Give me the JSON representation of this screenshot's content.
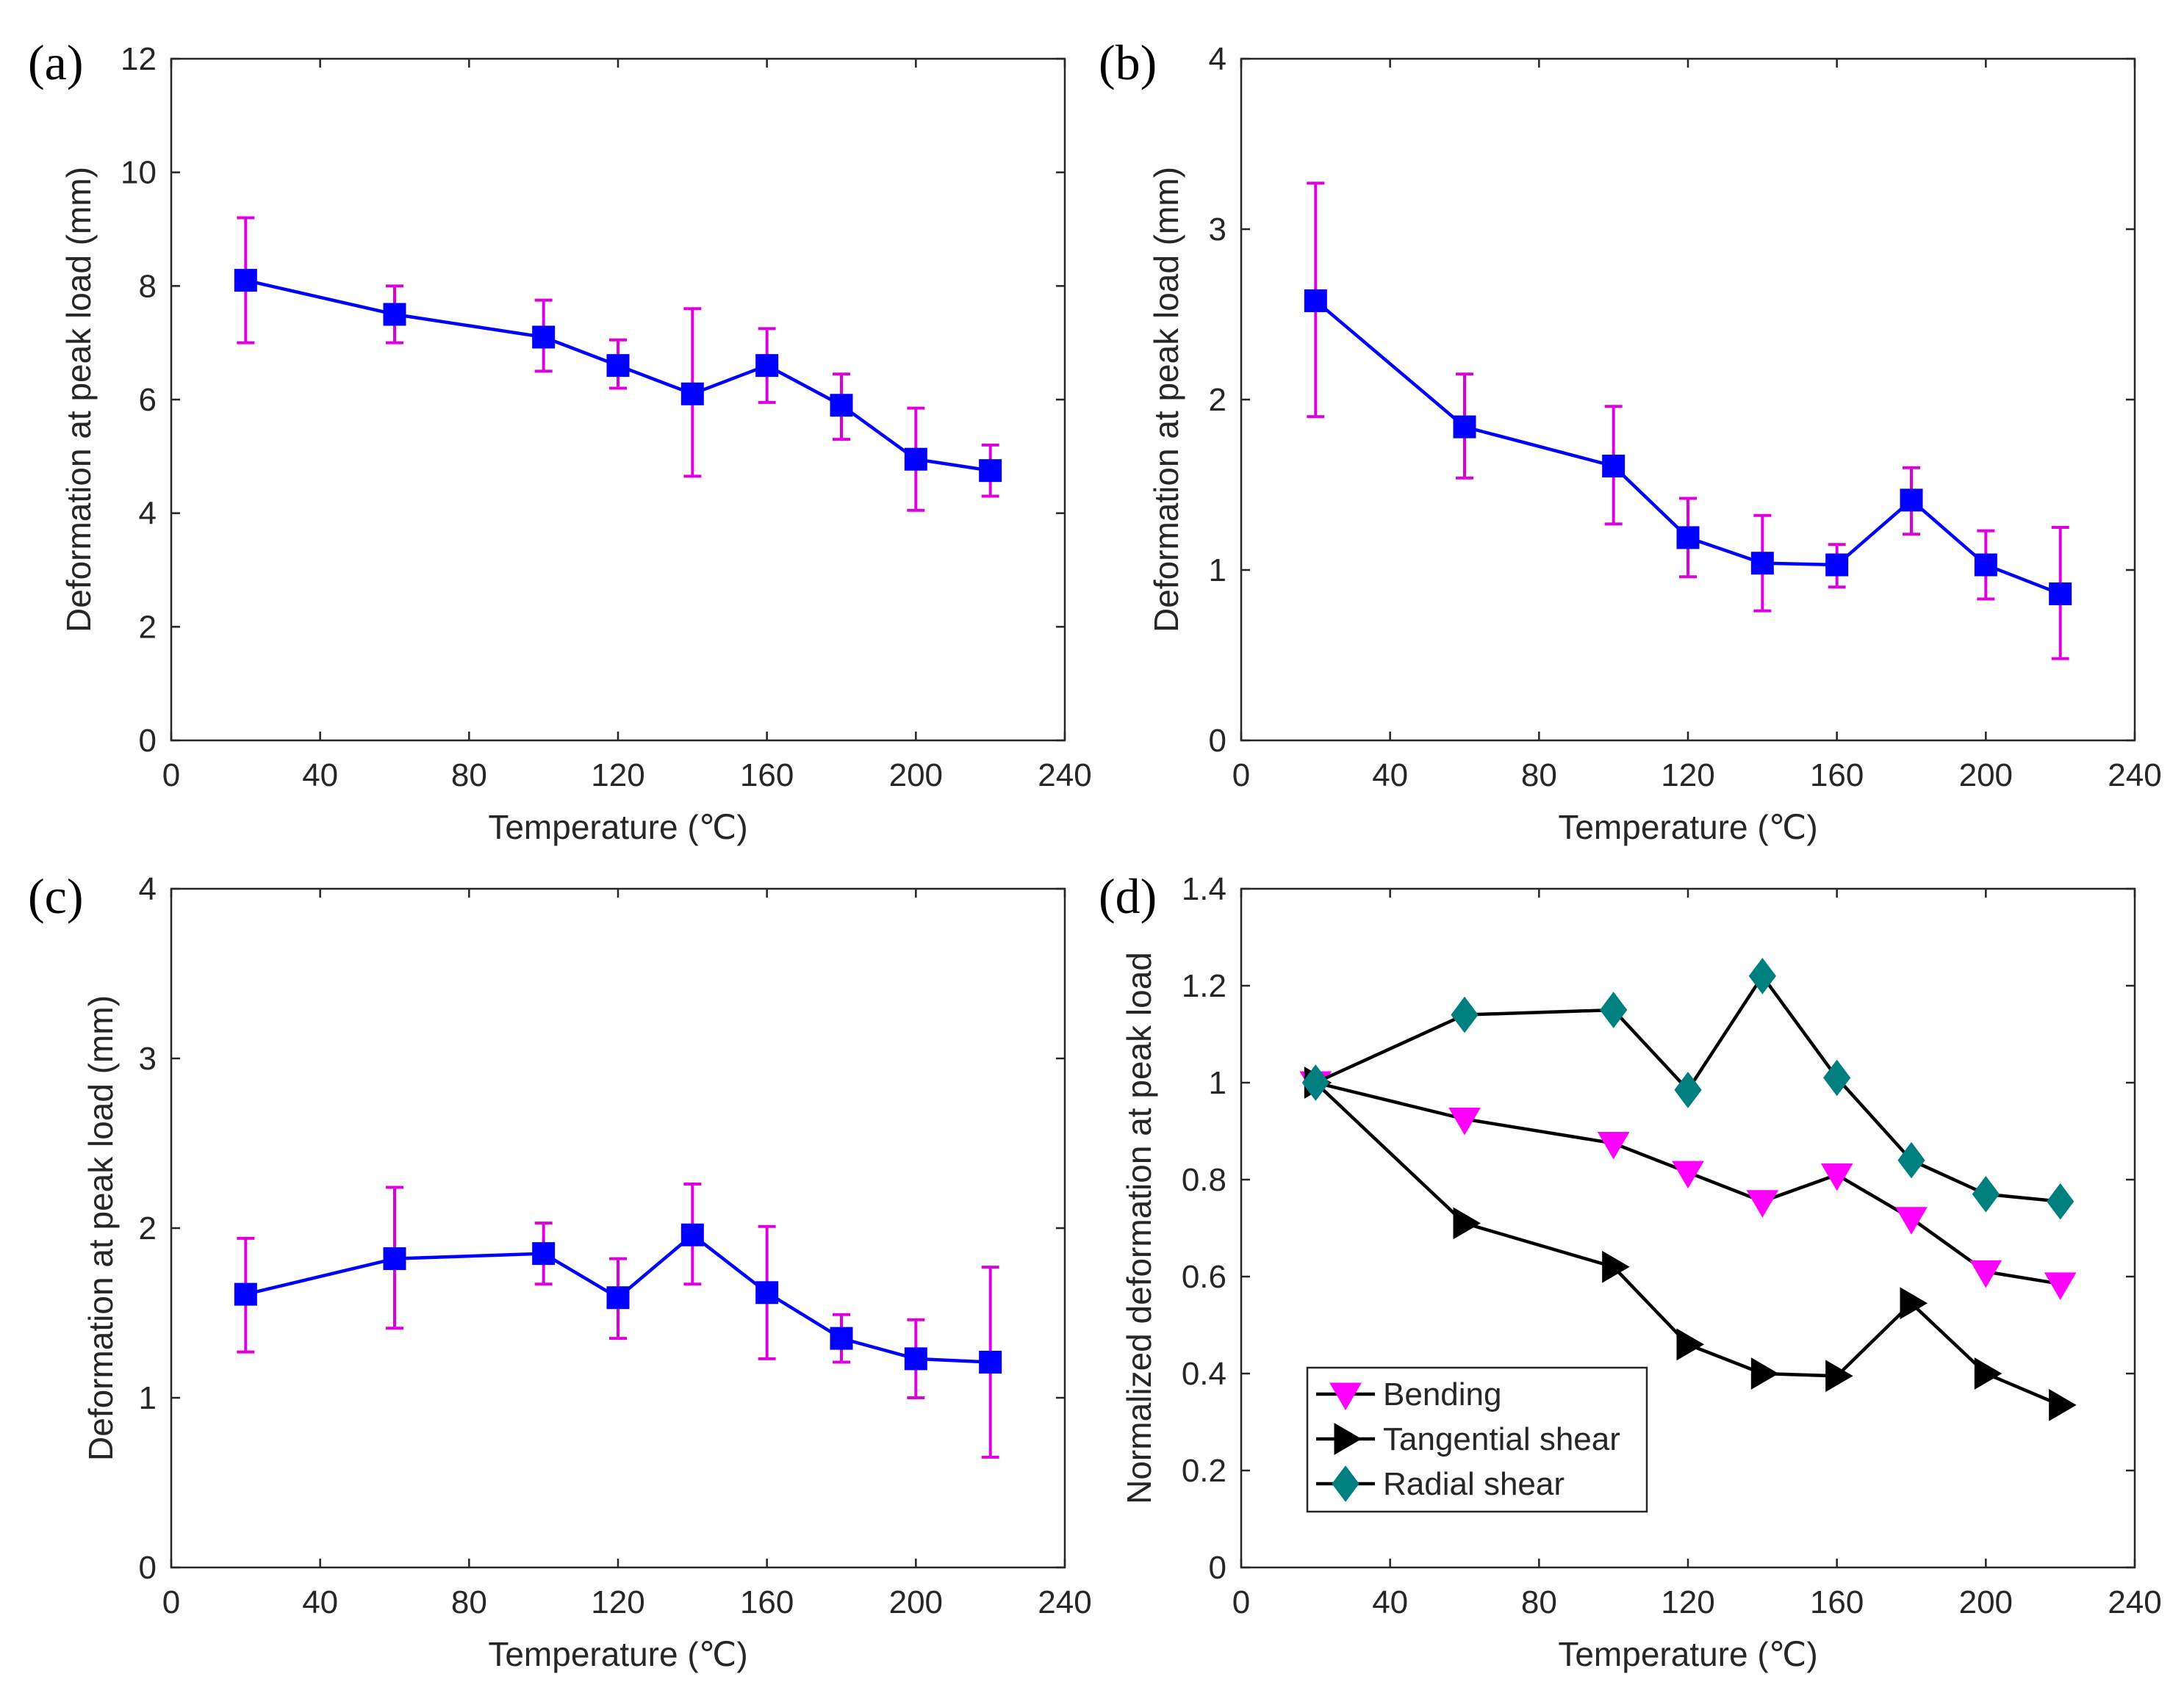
{
  "colors": {
    "line": "#0000ff",
    "marker": "#0000ff",
    "errorbar": "#dd00dd",
    "axis": "#262626",
    "bending": "#ff00ff",
    "tangential": "#000000",
    "radial": "#007f7f",
    "legendline": "#000000"
  },
  "chart_data": [
    {
      "id": "a",
      "panel_label": "(a)",
      "type": "line",
      "xlabel": "Temperature (℃)",
      "ylabel": "Deformation at peak load (mm)",
      "xlim": [
        0,
        240
      ],
      "ylim": [
        0,
        12
      ],
      "xticks": [
        0,
        40,
        80,
        120,
        160,
        200,
        240
      ],
      "yticks": [
        0,
        2,
        4,
        6,
        8,
        10,
        12
      ],
      "ytick_labels": [
        "0",
        "2",
        "4",
        "6",
        "8",
        "10",
        "12"
      ],
      "x": [
        20,
        60,
        100,
        120,
        140,
        160,
        180,
        200,
        220
      ],
      "y": [
        8.1,
        7.5,
        7.1,
        6.6,
        6.1,
        6.6,
        5.9,
        4.95,
        4.75
      ],
      "err_low": [
        7.0,
        7.0,
        6.5,
        6.2,
        4.65,
        5.95,
        5.3,
        4.05,
        4.3
      ],
      "err_high": [
        9.2,
        8.0,
        7.75,
        7.05,
        7.6,
        7.25,
        6.45,
        5.85,
        5.2
      ],
      "grid": false
    },
    {
      "id": "b",
      "panel_label": "(b)",
      "type": "line",
      "xlabel": "Temperature (℃)",
      "ylabel": "Deformation at peak load (mm)",
      "xlim": [
        0,
        240
      ],
      "ylim": [
        0,
        4
      ],
      "xticks": [
        0,
        40,
        80,
        120,
        160,
        200,
        240
      ],
      "yticks": [
        0,
        1,
        2,
        3,
        4
      ],
      "ytick_labels": [
        "0",
        "1",
        "2",
        "3",
        "4"
      ],
      "x": [
        20,
        60,
        100,
        120,
        140,
        160,
        180,
        200,
        220
      ],
      "y": [
        2.58,
        1.84,
        1.61,
        1.19,
        1.04,
        1.03,
        1.41,
        1.03,
        0.86
      ],
      "err_low": [
        1.9,
        1.54,
        1.27,
        0.96,
        0.76,
        0.9,
        1.21,
        0.83,
        0.48
      ],
      "err_high": [
        3.27,
        2.15,
        1.96,
        1.42,
        1.32,
        1.15,
        1.6,
        1.23,
        1.25
      ],
      "grid": false
    },
    {
      "id": "c",
      "panel_label": "(c)",
      "type": "line",
      "xlabel": "Temperature (℃)",
      "ylabel": "Deformation at peak load (mm)",
      "xlim": [
        0,
        240
      ],
      "ylim": [
        0,
        4
      ],
      "xticks": [
        0,
        40,
        80,
        120,
        160,
        200,
        240
      ],
      "yticks": [
        0,
        1,
        2,
        3,
        4
      ],
      "ytick_labels": [
        "0",
        "1",
        "2",
        "3",
        "4"
      ],
      "x": [
        20,
        60,
        100,
        120,
        140,
        160,
        180,
        200,
        220
      ],
      "y": [
        1.61,
        1.82,
        1.85,
        1.59,
        1.96,
        1.62,
        1.35,
        1.23,
        1.21
      ],
      "err_low": [
        1.27,
        1.41,
        1.67,
        1.35,
        1.67,
        1.23,
        1.21,
        1.0,
        0.65
      ],
      "err_high": [
        1.94,
        2.24,
        2.03,
        1.82,
        2.26,
        2.01,
        1.49,
        1.46,
        1.77
      ],
      "grid": false
    },
    {
      "id": "d",
      "panel_label": "(d)",
      "type": "line",
      "xlabel": "Temperature (℃)",
      "ylabel": "Normalized deformation at peak load",
      "xlim": [
        0,
        240
      ],
      "ylim": [
        0,
        1.4
      ],
      "xticks": [
        0,
        40,
        80,
        120,
        160,
        200,
        240
      ],
      "yticks": [
        0,
        0.2,
        0.4,
        0.6,
        0.8,
        1.0,
        1.2,
        1.4
      ],
      "ytick_labels": [
        "0",
        "0.2",
        "0.4",
        "0.6",
        "0.8",
        "1",
        "1.2",
        "1.4"
      ],
      "x": [
        20,
        60,
        100,
        120,
        140,
        160,
        180,
        200,
        220
      ],
      "legend_position": "bottom-left",
      "grid": false,
      "series": [
        {
          "name": "Bending",
          "marker": "triangle-down",
          "values": [
            1.0,
            0.925,
            0.875,
            0.815,
            0.755,
            0.81,
            0.72,
            0.61,
            0.585
          ]
        },
        {
          "name": "Tangential shear",
          "marker": "triangle-right",
          "values": [
            1.0,
            0.71,
            0.62,
            0.46,
            0.4,
            0.395,
            0.545,
            0.4,
            0.335
          ]
        },
        {
          "name": "Radial shear",
          "marker": "diamond",
          "values": [
            1.0,
            1.14,
            1.15,
            0.985,
            1.22,
            1.01,
            0.84,
            0.77,
            0.755
          ]
        }
      ]
    }
  ]
}
